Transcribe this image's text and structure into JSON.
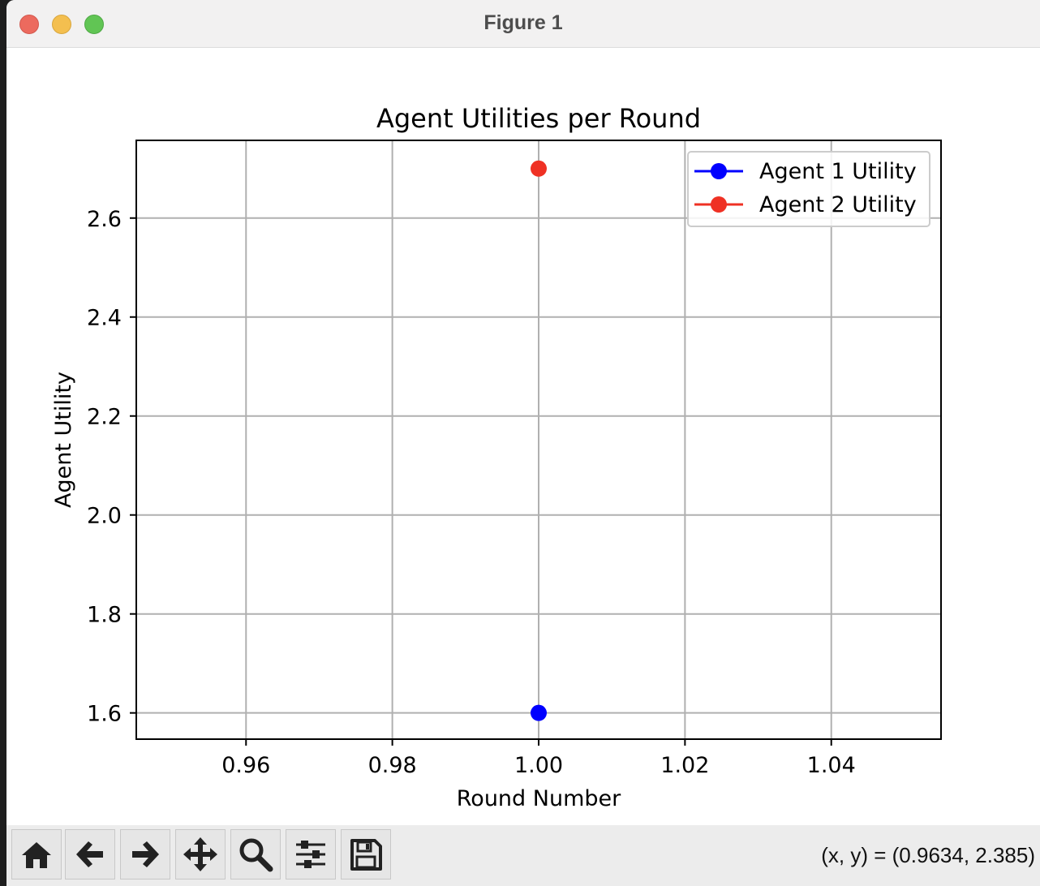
{
  "window": {
    "title": "Figure 1"
  },
  "toolbar": {
    "buttons": [
      {
        "name": "home-icon"
      },
      {
        "name": "back-arrow-icon"
      },
      {
        "name": "forward-arrow-icon"
      },
      {
        "name": "pan-move-icon"
      },
      {
        "name": "zoom-magnifier-icon"
      },
      {
        "name": "configure-subplots-icon"
      },
      {
        "name": "save-floppy-icon"
      }
    ],
    "coords_readout": "(x, y) = (0.9634, 2.385)"
  },
  "chart_data": {
    "type": "line",
    "title": "Agent Utilities per Round",
    "xlabel": "Round Number",
    "ylabel": "Agent Utility",
    "xlim": [
      0.945,
      1.055
    ],
    "ylim": [
      1.547,
      2.757
    ],
    "xticks": [
      0.96,
      0.98,
      1.0,
      1.02,
      1.04
    ],
    "xtick_labels": [
      "0.96",
      "0.98",
      "1.00",
      "1.02",
      "1.04"
    ],
    "yticks": [
      1.6,
      1.8,
      2.0,
      2.2,
      2.4,
      2.6
    ],
    "ytick_labels": [
      "1.6",
      "1.8",
      "2.0",
      "2.2",
      "2.4",
      "2.6"
    ],
    "grid": true,
    "legend_position": "top-right",
    "series": [
      {
        "name": "Agent 1 Utility",
        "color": "#0000ff",
        "marker": "circle",
        "x": [
          1.0
        ],
        "y": [
          1.6
        ]
      },
      {
        "name": "Agent 2 Utility",
        "color": "#ef3124",
        "marker": "circle",
        "x": [
          1.0
        ],
        "y": [
          2.7
        ]
      }
    ]
  }
}
